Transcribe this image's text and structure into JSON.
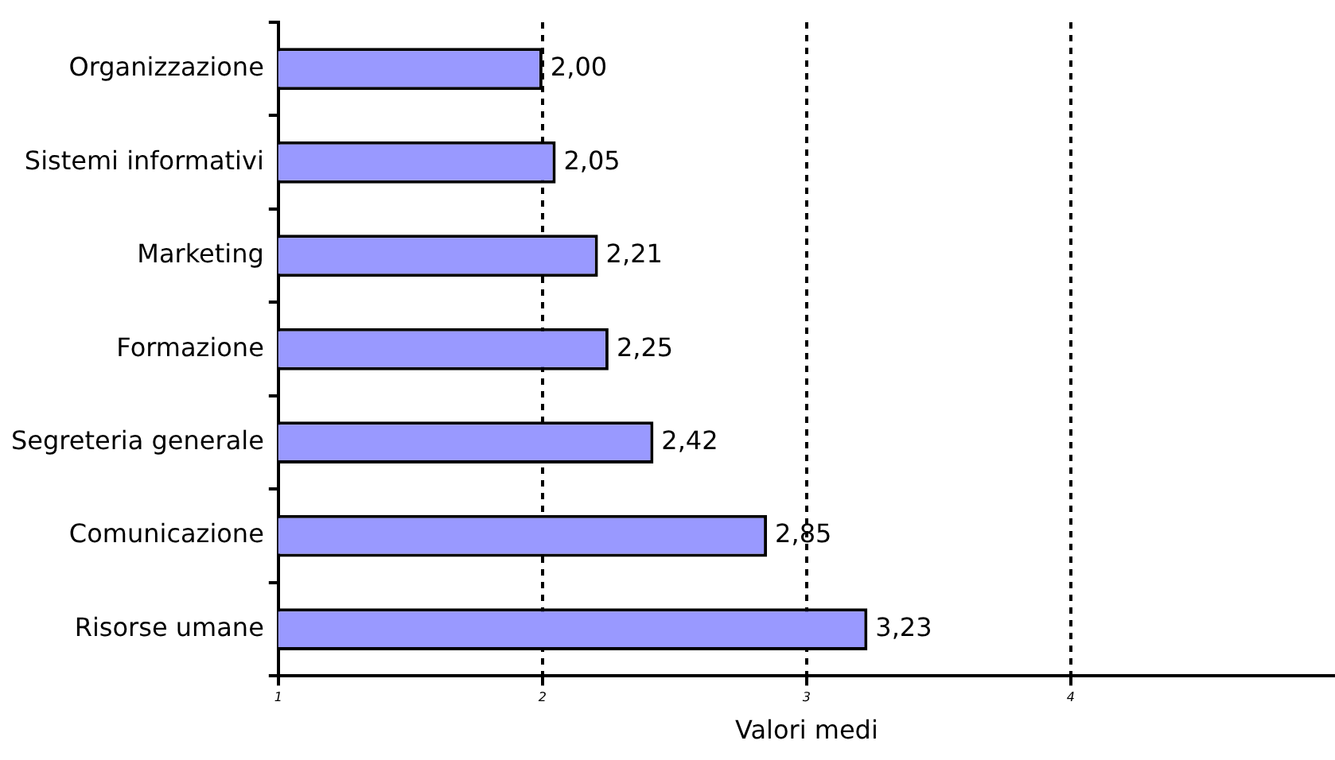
{
  "chart_data": {
    "type": "bar",
    "orientation": "horizontal",
    "xlabel": "Valori medi",
    "categories": [
      "Organizzazione",
      "Sistemi informativi",
      "Marketing",
      "Formazione",
      "Segreteria generale",
      "Comunicazione",
      "Risorse umane"
    ],
    "values": [
      2.0,
      2.05,
      2.21,
      2.25,
      2.42,
      2.85,
      3.23
    ],
    "value_labels": [
      "2,00",
      "2,05",
      "2,21",
      "2,25",
      "2,42",
      "2,85",
      "3,23"
    ],
    "color": "#9999ff",
    "xlim": [
      1,
      5
    ],
    "xticks": [
      1,
      2,
      3,
      4
    ],
    "grid": "x"
  }
}
